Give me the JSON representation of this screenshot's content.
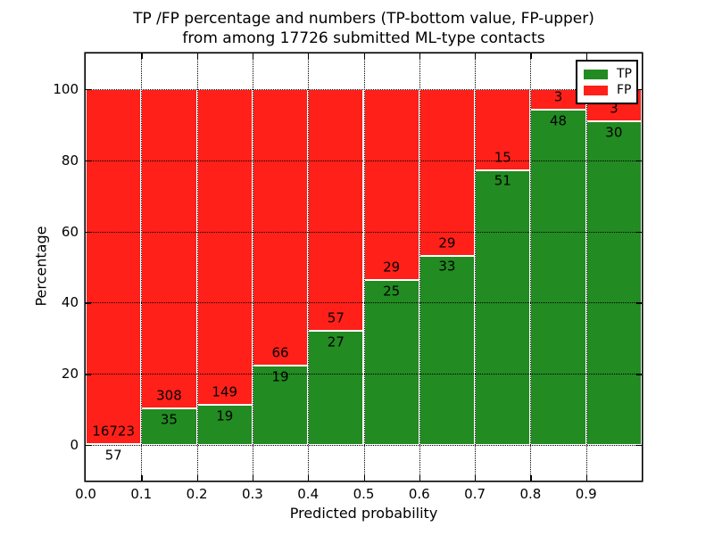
{
  "title": {
    "line1": "TP /FP percentage and numbers (TP-bottom value, FP-upper)",
    "line2": "from among 17726 submitted ML-type contacts"
  },
  "total_contacts": "17726",
  "legend": {
    "position": "upper right",
    "entries": [
      {
        "label": "TP",
        "color": "#228b22"
      },
      {
        "label": "FP",
        "color": "#ff2019"
      }
    ]
  },
  "chart_data": {
    "type": "bar",
    "stacked": true,
    "title": "TP /FP percentage and numbers (TP-bottom value, FP-upper) from among 17726 submitted ML-type contacts",
    "xlabel": "Predicted probability",
    "ylabel": "Percentage",
    "bin_starts": [
      0.0,
      0.1,
      0.2,
      0.3,
      0.4,
      0.5,
      0.6,
      0.7,
      0.8,
      0.9
    ],
    "bin_width": 0.1,
    "series": [
      {
        "name": "TP",
        "color": "#228b22",
        "counts": [
          57,
          35,
          19,
          19,
          27,
          25,
          33,
          51,
          48,
          30
        ]
      },
      {
        "name": "FP",
        "color": "#ff2019",
        "counts": [
          16723,
          308,
          149,
          66,
          57,
          29,
          29,
          15,
          3,
          3
        ]
      }
    ],
    "tp_percent_of_bin": [
      0.34,
      10.2,
      11.31,
      22.35,
      32.14,
      46.3,
      53.23,
      77.27,
      94.12,
      90.91
    ],
    "bars_sum_to": 100,
    "xlim": [
      0.0,
      1.0
    ],
    "ylim": [
      -10,
      110
    ],
    "xticks": [
      "0.0",
      "0.1",
      "0.2",
      "0.3",
      "0.4",
      "0.5",
      "0.6",
      "0.7",
      "0.8",
      "0.9"
    ],
    "yticks": [
      "0",
      "20",
      "40",
      "60",
      "80",
      "100"
    ],
    "grid": "dotted",
    "bar_edge_color": "#ffffff",
    "legend_position": "upper right"
  }
}
